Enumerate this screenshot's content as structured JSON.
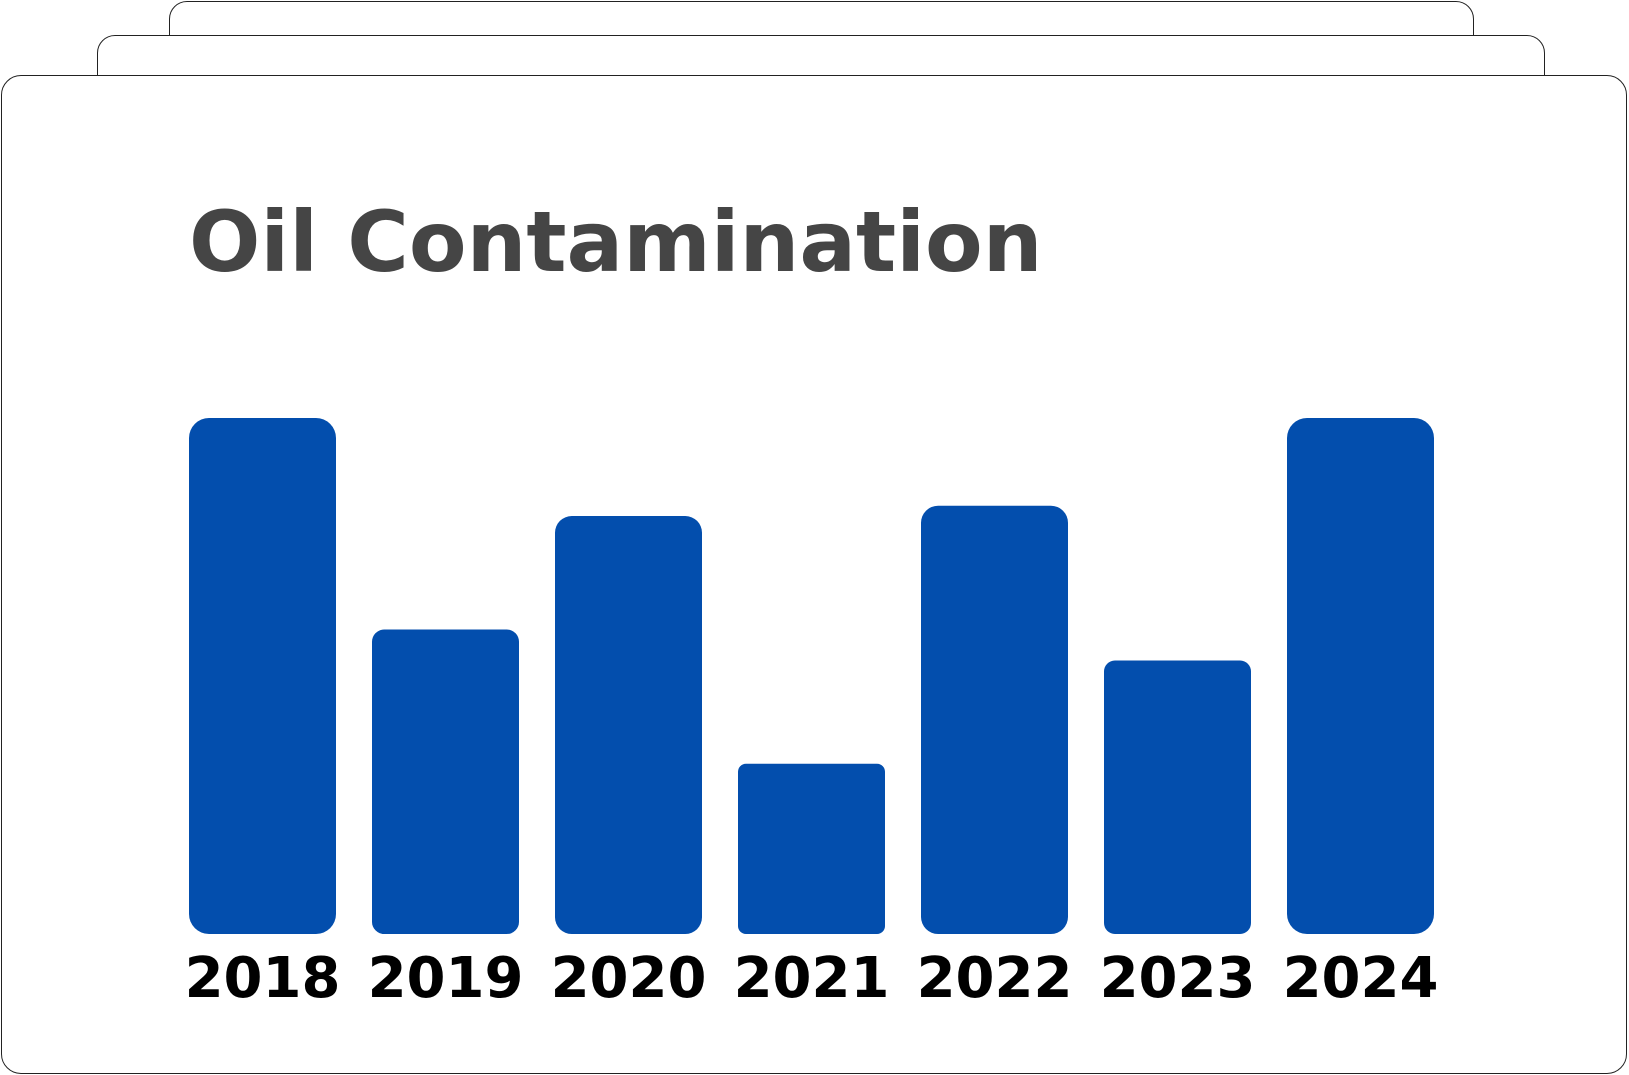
{
  "chart_data": {
    "type": "bar",
    "title": "Oil Contamination",
    "categories": [
      "2018",
      "2019",
      "2020",
      "2021",
      "2022",
      "2023",
      "2024"
    ],
    "values": [
      100,
      59,
      81,
      33,
      83,
      53,
      100
    ],
    "ylim": [
      0,
      100
    ],
    "bar_color": "#034EAD",
    "grid": false,
    "legend": "none",
    "xlabel": "",
    "ylabel": ""
  }
}
